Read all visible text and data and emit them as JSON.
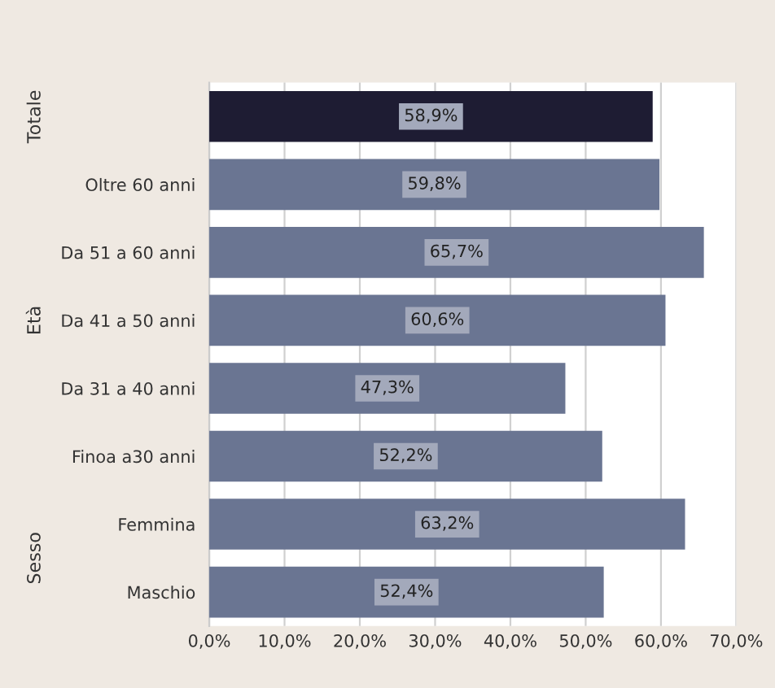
{
  "chart_data": {
    "type": "bar",
    "orientation": "horizontal",
    "categories": [
      null,
      "Oltre 60 anni",
      "Da 51 a 60 anni",
      "Da 41 a 50 anni",
      "Da 31 a 40 anni",
      "Finoa a30 anni",
      "Femmina",
      "Maschio"
    ],
    "values": [
      58.9,
      59.8,
      65.7,
      60.6,
      47.3,
      52.2,
      63.2,
      52.4
    ],
    "colors": [
      "#1e1c33",
      "#6a7592",
      "#6a7592",
      "#6a7592",
      "#6a7592",
      "#6a7592",
      "#6a7592",
      "#6a7592"
    ],
    "value_labels": [
      "58,9%",
      "59,8%",
      "65,7%",
      "60,6%",
      "47,3%",
      "52,2%",
      "63,2%",
      "52,4%"
    ],
    "annotations": [
      "Totale",
      "Età",
      "Sesso"
    ],
    "xlim": [
      0,
      70
    ],
    "xticks": [
      {
        "value": 0,
        "label": "0,0%"
      },
      {
        "value": 10,
        "label": "10,0%"
      },
      {
        "value": 20,
        "label": "20,0%"
      },
      {
        "value": 30,
        "label": "30,0%"
      },
      {
        "value": 40,
        "label": "40,0%"
      },
      {
        "value": 50,
        "label": "50,0%"
      },
      {
        "value": 60,
        "label": "60,0%"
      },
      {
        "value": 70,
        "label": "70,0%"
      }
    ],
    "grid": "x",
    "legend": false
  }
}
